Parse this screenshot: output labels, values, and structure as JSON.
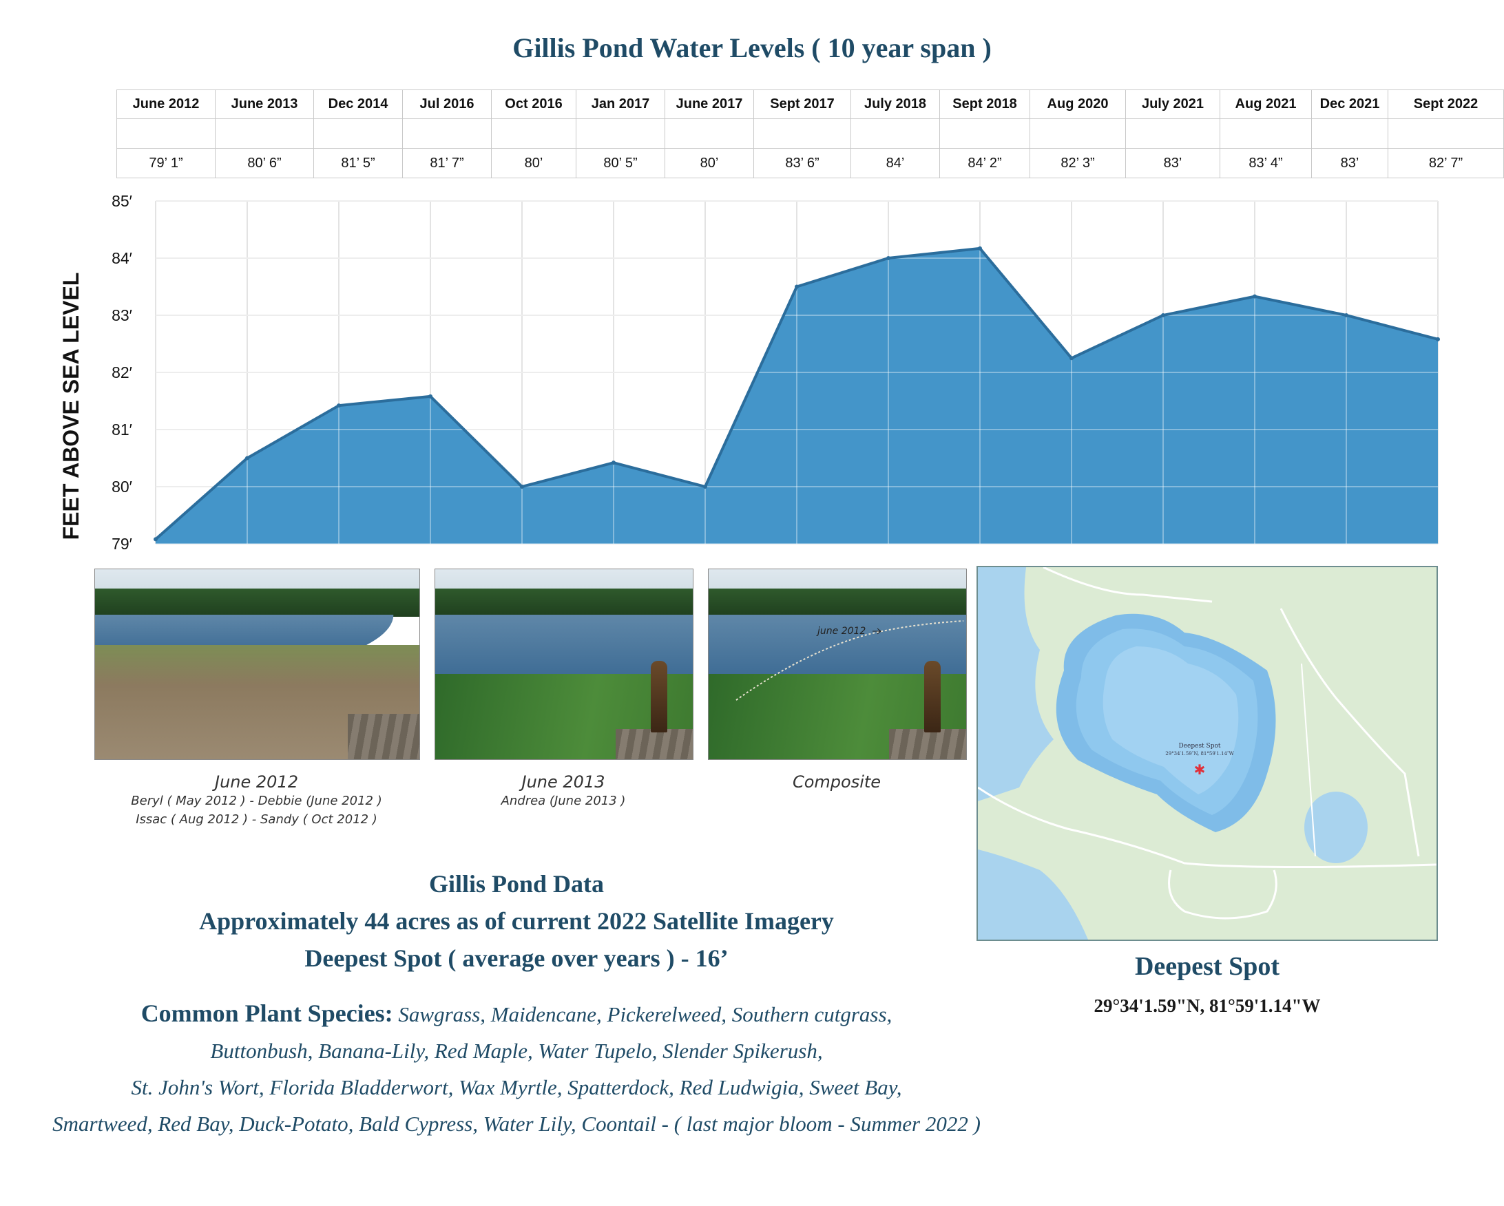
{
  "title": "Gillis Pond Water Levels ( 10 year span )",
  "table": {
    "dates": [
      "June 2012",
      "June 2013",
      "Dec 2014",
      "Jul 2016",
      "Oct 2016",
      "Jan 2017",
      "June 2017",
      "Sept 2017",
      "July 2018",
      "Sept 2018",
      "Aug 2020",
      "July 2021",
      "Aug 2021",
      "Dec 2021",
      "Sept 2022"
    ],
    "levels": [
      "79’ 1”",
      "80’ 6”",
      "81’ 5”",
      "81’ 7”",
      "80’",
      "80’ 5”",
      "80’",
      "83’ 6”",
      "84’",
      "84’ 2”",
      "82’ 3”",
      "83’",
      "83’ 4”",
      "83’",
      "82’ 7”"
    ]
  },
  "chart_data": {
    "type": "area",
    "title": "Gillis Pond Water Levels ( 10 year span )",
    "ylabel": "FEET ABOVE SEA LEVEL",
    "xlabel": "",
    "x": [
      "June 2012",
      "June 2013",
      "Dec 2014",
      "Jul 2016",
      "Oct 2016",
      "Jan 2017",
      "June 2017",
      "Sept 2017",
      "July 2018",
      "Sept 2018",
      "Aug 2020",
      "July 2021",
      "Aug 2021",
      "Dec 2021",
      "Sept 2022"
    ],
    "values": [
      79.08,
      80.5,
      81.42,
      81.58,
      80.0,
      80.42,
      80.0,
      83.5,
      84.0,
      84.17,
      82.25,
      83.0,
      83.33,
      83.0,
      82.58
    ],
    "ylim": [
      79,
      85
    ],
    "yticks": [
      79,
      80,
      81,
      82,
      83,
      84,
      85
    ],
    "ytick_labels": [
      "79′",
      "80′",
      "81′",
      "82′",
      "83′",
      "84′",
      "85′"
    ],
    "grid": true,
    "fill_color": "#4495c9",
    "line_color": "#2b6d9c"
  },
  "photos": [
    {
      "caption": "June 2012",
      "sub": [
        "Beryl ( May 2012 ) - Debbie (June 2012 )",
        "Issac ( Aug 2012 ) - Sandy ( Oct 2012 )"
      ]
    },
    {
      "caption": "June 2013",
      "sub": [
        "Andrea (June 2013 )"
      ]
    },
    {
      "caption": "Composite",
      "sub": [],
      "overlay": "june 2012"
    }
  ],
  "map": {
    "label": "Deepest Spot",
    "coords": "29°34′1.59″N, 81°59′1.14″W"
  },
  "pond_data": {
    "heading": "Gillis Pond Data",
    "acres": "Approximately 44 acres as of current 2022 Satellite Imagery",
    "depth": "Deepest Spot ( average over years )  - 16’"
  },
  "plants": {
    "heading": "Common Plant Species:",
    "lines": [
      "Sawgrass, Maidencane, Pickerelweed, Southern cutgrass,",
      "Buttonbush, Banana-Lily, Red Maple, Water Tupelo, Slender Spikerush,",
      "St. John's Wort, Florida Bladderwort, Wax Myrtle, Spatterdock, Red Ludwigia, Sweet Bay,",
      "Smartweed, Red Bay, Duck-Potato, Bald Cypress, Water Lily, Coontail - ( last major bloom - Summer 2022 )"
    ]
  },
  "deepest_spot": {
    "title": "Deepest Spot",
    "coords": "29°34'1.59\"N,  81°59'1.14\"W"
  }
}
